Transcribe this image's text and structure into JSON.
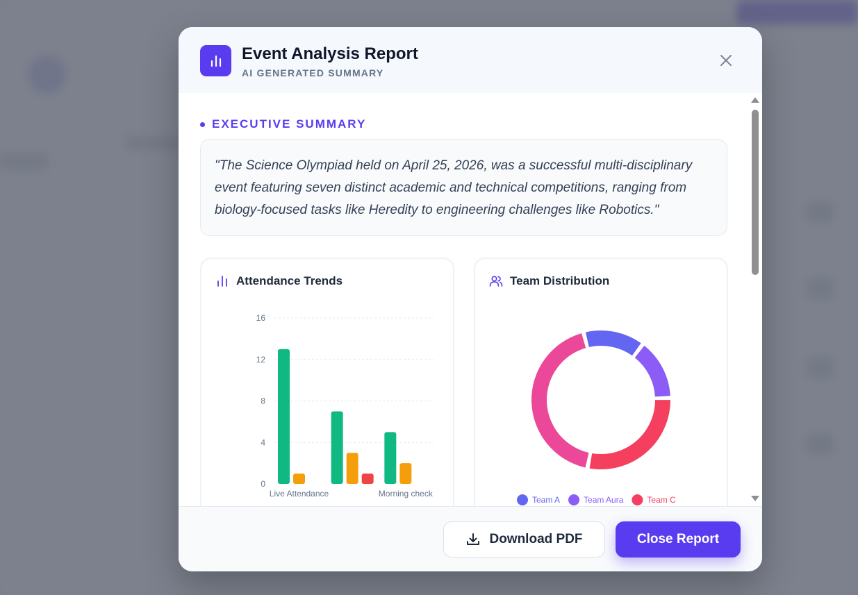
{
  "modal": {
    "title": "Event Analysis Report",
    "subtitle": "AI GENERATED SUMMARY",
    "close_icon": "close-icon"
  },
  "summary": {
    "label": "EXECUTIVE SUMMARY",
    "text": "\"The Science Olympiad held on April 25, 2026, was a successful multi-disciplinary event featuring seven distinct academic and technical competitions, ranging from biology-focused tasks like Heredity to engineering challenges like Robotics.\""
  },
  "attendance": {
    "title": "Attendance Trends",
    "icon": "bar-chart-icon"
  },
  "teams": {
    "title": "Team Distribution",
    "icon": "users-icon"
  },
  "chart_data": [
    {
      "type": "bar",
      "title": "Attendance Trends",
      "ylim": [
        0,
        16
      ],
      "yticks": [
        0,
        4,
        8,
        12,
        16
      ],
      "categories": [
        "Live Attendance",
        "",
        "Morning check"
      ],
      "series": [
        {
          "color": "#10b981",
          "values": [
            13,
            7,
            5
          ]
        },
        {
          "color": "#f59e0b",
          "values": [
            1,
            3,
            2
          ]
        },
        {
          "color": "#ef4444",
          "values": [
            0,
            1,
            0
          ]
        }
      ],
      "grid": true
    },
    {
      "type": "pie",
      "title": "Team Distribution",
      "donut": true,
      "slices": [
        {
          "name": "Team A",
          "value": 1.0,
          "color": "#6366f1"
        },
        {
          "name": "Team Aura",
          "value": 1.0,
          "color": "#8b5cf6"
        },
        {
          "name": "Team C",
          "value": 2.0,
          "color": "#f43f5e"
        },
        {
          "name": "",
          "value": 3.0,
          "color": "#ec4899"
        }
      ],
      "legend": "bottom"
    }
  ],
  "footer": {
    "download_label": "Download PDF",
    "download_icon": "download-icon",
    "close_label": "Close Report"
  },
  "colors": {
    "accent": "#5a3cf0"
  }
}
